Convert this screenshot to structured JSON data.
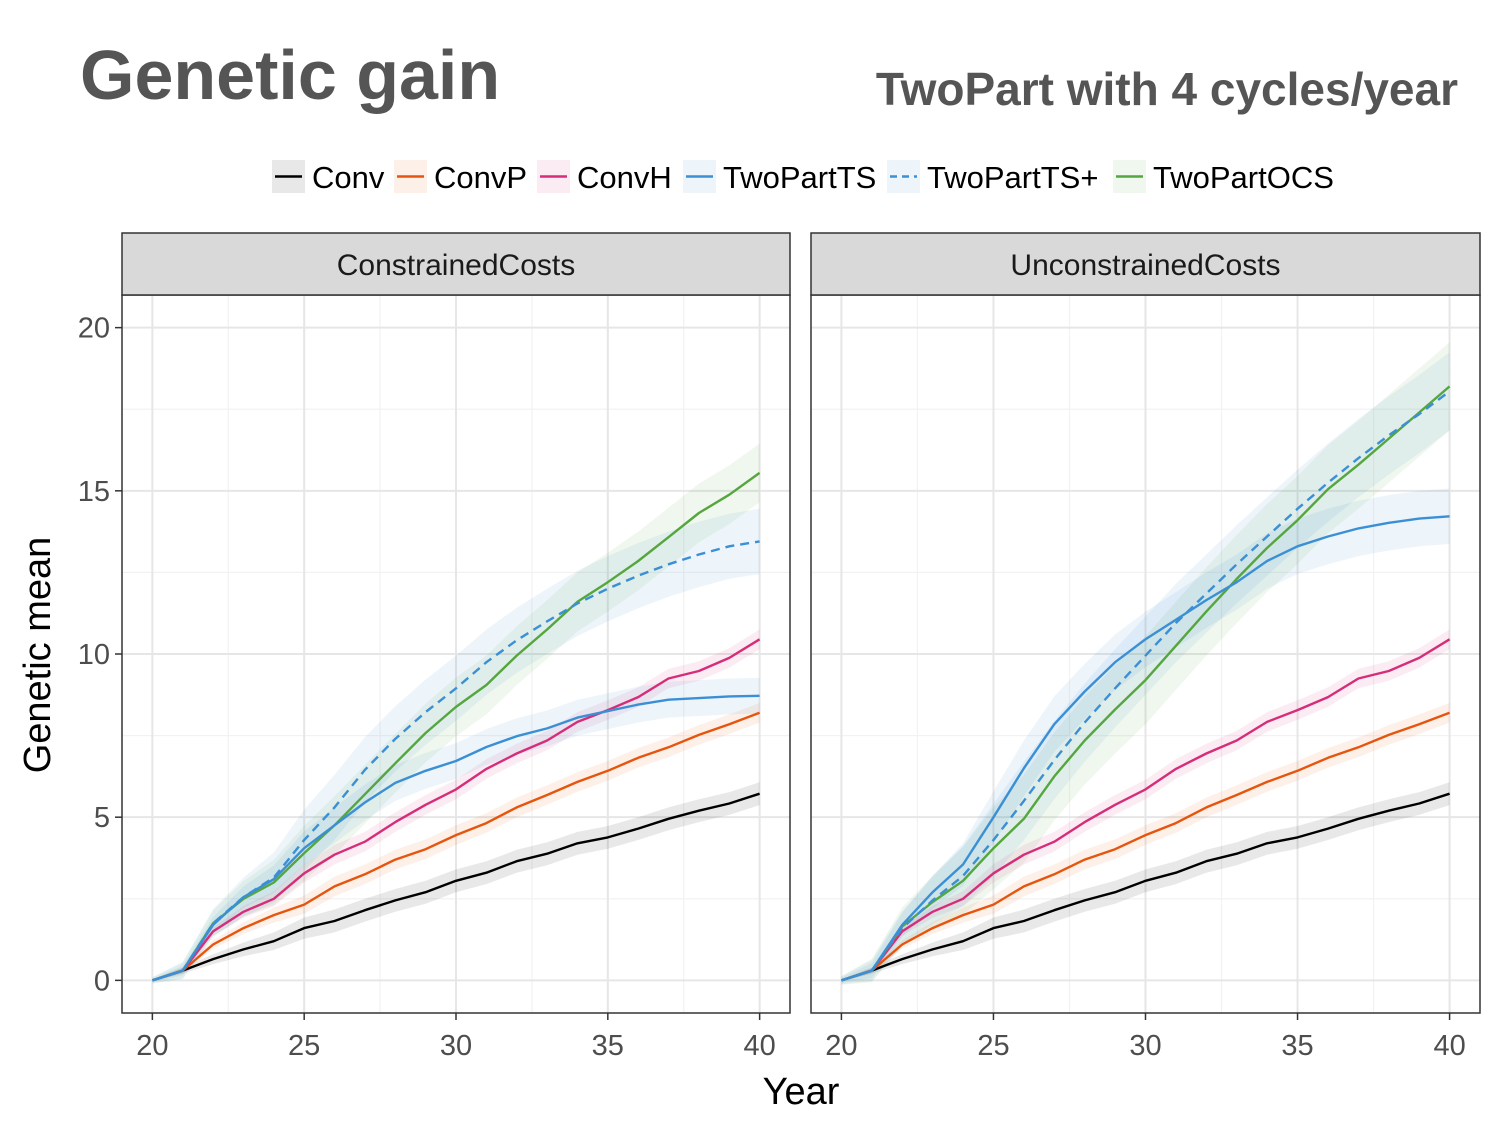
{
  "slide": {
    "title": "Genetic gain",
    "subtitle": "TwoPart with 4 cycles/year"
  },
  "colors": {
    "Conv": "#000000",
    "ConvP": "#e6550d",
    "ConvH": "#d62d7a",
    "TwoPartTS": "#3b8fd4",
    "TwoPartTS+": "#3b8fd4",
    "TwoPartOCS": "#55a63e"
  },
  "chart_data": {
    "type": "line",
    "xlabel": "Year",
    "ylabel": "Genetic mean",
    "xlim": [
      19,
      41
    ],
    "ylim": [
      -1,
      21
    ],
    "xticks": [
      20,
      25,
      30,
      35,
      40
    ],
    "yticks": [
      0,
      5,
      10,
      15,
      20
    ],
    "grid": true,
    "legend_position": "top",
    "legend": [
      "Conv",
      "ConvP",
      "ConvH",
      "TwoPartTS",
      "TwoPartTS+",
      "TwoPartOCS"
    ],
    "x": [
      20,
      21,
      22,
      23,
      24,
      25,
      26,
      27,
      28,
      29,
      30,
      31,
      32,
      33,
      34,
      35,
      36,
      37,
      38,
      39,
      40
    ],
    "panels": [
      {
        "title": "ConstrainedCosts",
        "series": [
          {
            "name": "Conv",
            "style": "solid",
            "band": 0.35,
            "values": [
              0,
              0.3,
              0.65,
              0.95,
              1.2,
              1.6,
              1.82,
              2.15,
              2.45,
              2.7,
              3.05,
              3.3,
              3.65,
              3.88,
              4.2,
              4.38,
              4.65,
              4.95,
              5.2,
              5.42,
              5.72
            ]
          },
          {
            "name": "ConvP",
            "style": "solid",
            "band": 0.3,
            "values": [
              0,
              0.3,
              1.1,
              1.6,
              2.0,
              2.32,
              2.88,
              3.25,
              3.7,
              4.02,
              4.45,
              4.82,
              5.3,
              5.68,
              6.08,
              6.42,
              6.82,
              7.14,
              7.52,
              7.85,
              8.2
            ]
          },
          {
            "name": "ConvH",
            "style": "solid",
            "band": 0.3,
            "values": [
              0,
              0.3,
              1.5,
              2.1,
              2.5,
              3.28,
              3.85,
              4.25,
              4.85,
              5.38,
              5.85,
              6.48,
              6.95,
              7.35,
              7.92,
              8.28,
              8.68,
              9.25,
              9.48,
              9.88,
              10.45
            ]
          },
          {
            "name": "TwoPartTS",
            "style": "solid",
            "band": 0.55,
            "values": [
              0,
              0.3,
              1.7,
              2.55,
              3.1,
              4.05,
              4.75,
              5.45,
              6.05,
              6.42,
              6.72,
              7.15,
              7.48,
              7.72,
              8.05,
              8.25,
              8.45,
              8.6,
              8.65,
              8.7,
              8.72
            ]
          },
          {
            "name": "TwoPartTS+",
            "style": "dashed",
            "band": 1.0,
            "values": [
              0,
              0.3,
              1.75,
              2.55,
              3.15,
              4.3,
              5.3,
              6.45,
              7.4,
              8.22,
              8.95,
              9.75,
              10.42,
              11.0,
              11.55,
              12.0,
              12.4,
              12.75,
              13.05,
              13.3,
              13.45
            ]
          },
          {
            "name": "TwoPartOCS",
            "style": "solid",
            "band": 0.9,
            "values": [
              0,
              0.3,
              1.75,
              2.5,
              3.0,
              3.9,
              4.75,
              5.7,
              6.65,
              7.58,
              8.38,
              9.05,
              9.95,
              10.75,
              11.6,
              12.2,
              12.85,
              13.58,
              14.32,
              14.88,
              15.55
            ]
          }
        ]
      },
      {
        "title": "UnconstrainedCosts",
        "series": [
          {
            "name": "Conv",
            "style": "solid",
            "band": 0.35,
            "values": [
              0,
              0.3,
              0.65,
              0.95,
              1.2,
              1.6,
              1.82,
              2.15,
              2.45,
              2.7,
              3.05,
              3.3,
              3.65,
              3.88,
              4.2,
              4.38,
              4.65,
              4.95,
              5.2,
              5.42,
              5.72
            ]
          },
          {
            "name": "ConvP",
            "style": "solid",
            "band": 0.3,
            "values": [
              0,
              0.3,
              1.1,
              1.6,
              2.0,
              2.32,
              2.88,
              3.25,
              3.7,
              4.02,
              4.45,
              4.82,
              5.3,
              5.68,
              6.08,
              6.42,
              6.82,
              7.14,
              7.52,
              7.85,
              8.2
            ]
          },
          {
            "name": "ConvH",
            "style": "solid",
            "band": 0.3,
            "values": [
              0,
              0.3,
              1.5,
              2.1,
              2.5,
              3.28,
              3.85,
              4.25,
              4.85,
              5.38,
              5.85,
              6.48,
              6.95,
              7.35,
              7.92,
              8.28,
              8.68,
              9.25,
              9.48,
              9.88,
              10.45
            ]
          },
          {
            "name": "TwoPartTS",
            "style": "solid",
            "band": 0.85,
            "values": [
              0,
              0.3,
              1.7,
              2.7,
              3.55,
              5.0,
              6.5,
              7.85,
              8.85,
              9.75,
              10.45,
              11.05,
              11.65,
              12.2,
              12.85,
              13.3,
              13.6,
              13.85,
              14.02,
              14.15,
              14.22
            ]
          },
          {
            "name": "TwoPartTS+",
            "style": "dashed",
            "band": 1.2,
            "values": [
              0,
              0.3,
              1.6,
              2.45,
              3.2,
              4.3,
              5.5,
              6.75,
              7.9,
              8.95,
              9.95,
              10.95,
              11.85,
              12.75,
              13.6,
              14.45,
              15.25,
              16.0,
              16.7,
              17.35,
              18.05
            ]
          },
          {
            "name": "TwoPartOCS",
            "style": "solid",
            "band": 1.35,
            "values": [
              0,
              0.3,
              1.65,
              2.4,
              3.05,
              4.05,
              4.95,
              6.25,
              7.35,
              8.3,
              9.2,
              10.25,
              11.3,
              12.3,
              13.25,
              14.1,
              15.05,
              15.8,
              16.6,
              17.4,
              18.2
            ]
          }
        ]
      }
    ]
  }
}
